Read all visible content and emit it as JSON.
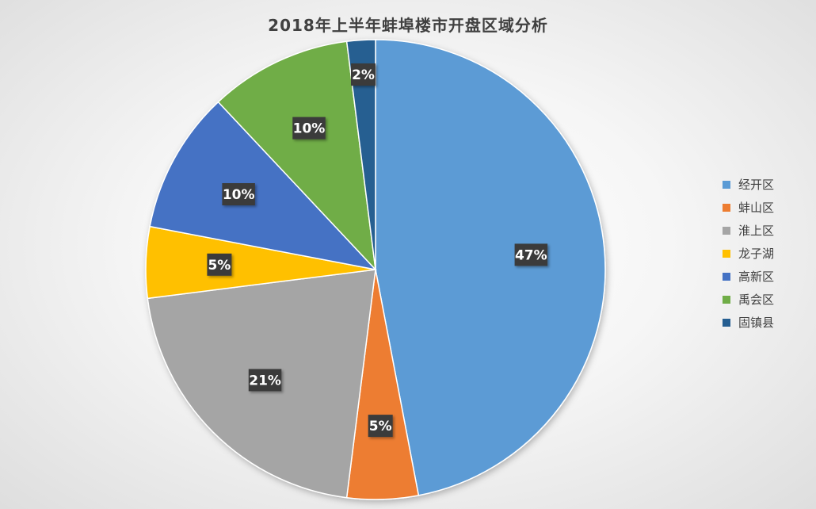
{
  "chart_data": {
    "type": "pie",
    "title": "2018年上半年蚌埠楼市开盘区域分析",
    "categories": [
      "经开区",
      "蚌山区",
      "淮上区",
      "龙子湖",
      "高新区",
      "禹会区",
      "固镇县"
    ],
    "values": [
      47,
      5,
      21,
      5,
      10,
      10,
      2
    ],
    "labels": [
      "47%",
      "5%",
      "21%",
      "5%",
      "10%",
      "10%",
      "2%"
    ],
    "colors": [
      "#5B9BD5",
      "#ED7D31",
      "#A5A5A5",
      "#FFC000",
      "#4472C4",
      "#70AD47",
      "#255E91"
    ],
    "legend_position": "right"
  }
}
